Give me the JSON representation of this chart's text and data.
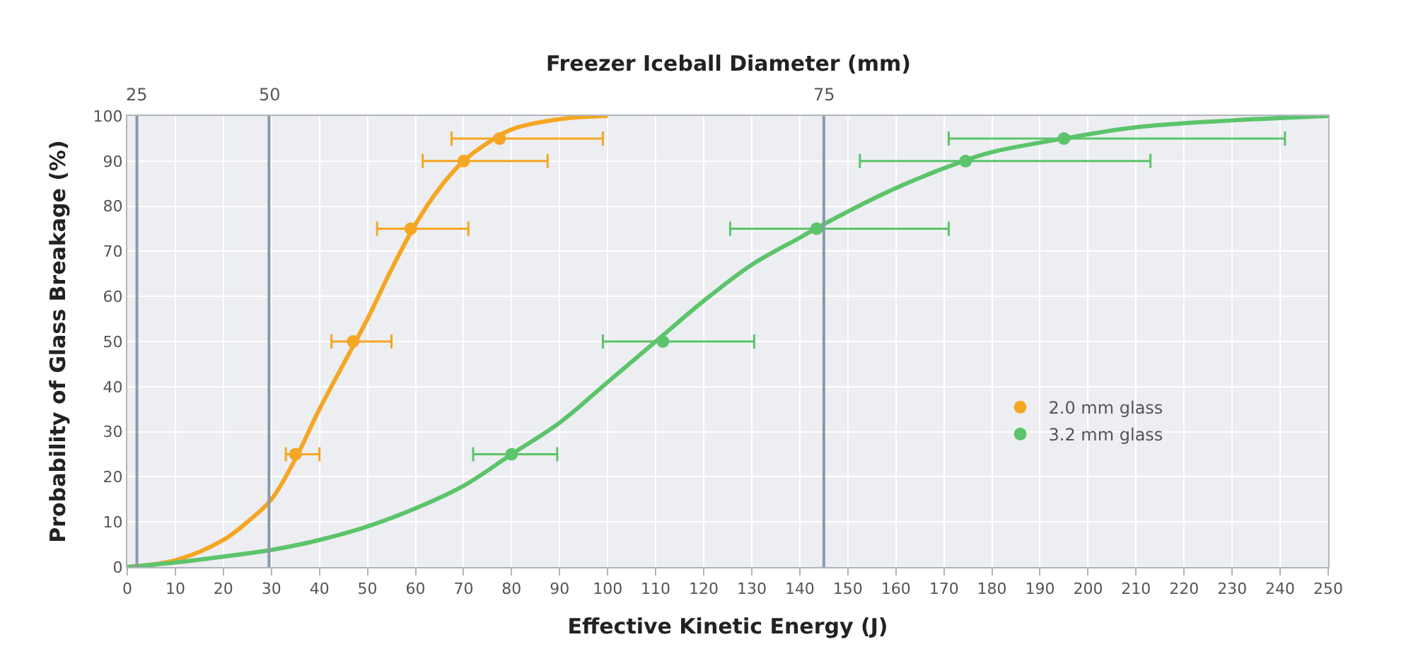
{
  "chart_data": {
    "type": "line",
    "x2label": "Freezer Iceball Diameter (mm)",
    "xlabel": "Effective Kinetic Energy (J)",
    "ylabel": "Probability of Glass Breakage (%)",
    "xlim": [
      0,
      250
    ],
    "xticks": [
      0,
      10,
      20,
      30,
      40,
      50,
      60,
      70,
      80,
      90,
      100,
      110,
      120,
      130,
      140,
      150,
      160,
      170,
      180,
      190,
      200,
      210,
      220,
      230,
      240,
      250
    ],
    "ylim": [
      0,
      100
    ],
    "yticks": [
      0,
      10,
      20,
      30,
      40,
      50,
      60,
      70,
      80,
      90,
      100
    ],
    "grid": true,
    "legend": "bottom right",
    "series": [
      {
        "color": "#f5a623",
        "x": [
          0,
          10,
          20,
          25,
          30,
          35,
          40,
          45,
          50,
          55,
          60,
          65,
          70,
          75,
          80,
          90,
          100
        ],
        "values": [
          0,
          1.5,
          6,
          10,
          15,
          24,
          35,
          45,
          55,
          66,
          76,
          84,
          90,
          94,
          97,
          99.3,
          100
        ]
      },
      {
        "color": "#5cc46a",
        "x": [
          0,
          10,
          20,
          30,
          40,
          50,
          60,
          70,
          80,
          90,
          100,
          110,
          120,
          130,
          140,
          145,
          160,
          174,
          180,
          195,
          210,
          230,
          250
        ],
        "values": [
          0,
          1,
          2.3,
          3.8,
          6,
          9,
          13,
          18,
          25,
          32,
          41,
          50,
          59,
          67,
          73,
          76,
          84,
          90,
          92,
          95,
          97.5,
          99,
          100
        ]
      },
      {
        "type": "scatter",
        "name": "2.0 mm glass",
        "color": "#f5a623",
        "marker": "circle",
        "x": [
          35,
          47,
          59,
          70,
          77.5
        ],
        "values": [
          25,
          50,
          75,
          90,
          95
        ],
        "xerrors": [
          [
            33,
            40
          ],
          [
            42.5,
            55
          ],
          [
            52,
            71
          ],
          [
            61.5,
            87.5
          ],
          [
            67.5,
            99
          ]
        ]
      },
      {
        "type": "scatter",
        "name": "3.2 mm glass",
        "color": "#5cc46a",
        "marker": "circle",
        "x": [
          80,
          111.5,
          143.5,
          174.5,
          195
        ],
        "values": [
          25,
          50,
          75,
          90,
          95
        ],
        "xerrors": [
          [
            72,
            89.5
          ],
          [
            99,
            130.5
          ],
          [
            125.5,
            171
          ],
          [
            152.5,
            213
          ],
          [
            171,
            241
          ]
        ]
      }
    ],
    "ref_lines": [
      {
        "axis": "x",
        "value": 2,
        "color": "#8a9aa8"
      },
      {
        "axis": "x",
        "value": 29.5,
        "color": "#8a9aa8"
      },
      {
        "axis": "x",
        "value": 145,
        "color": "#8a9aa8"
      }
    ],
    "annotations": [
      {
        "text": "25",
        "x": 2,
        "y": 100
      },
      {
        "text": "50",
        "x": 29.5,
        "y": 100
      },
      {
        "text": "75",
        "x": 145,
        "y": 100
      }
    ]
  }
}
